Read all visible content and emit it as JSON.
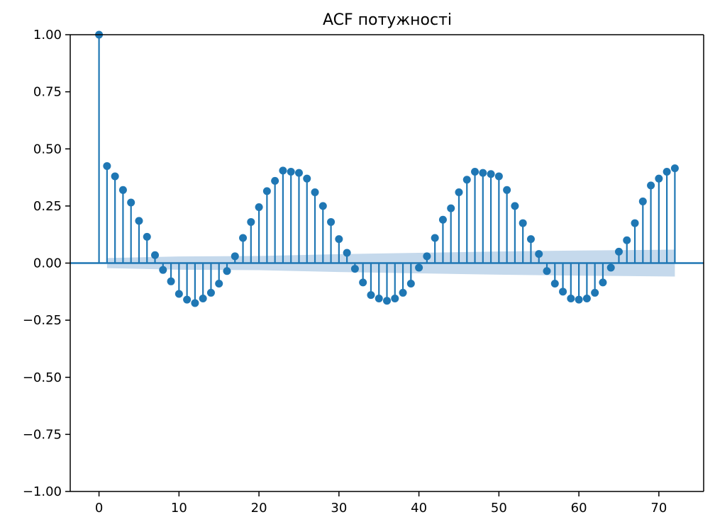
{
  "chart_data": {
    "type": "stem",
    "title": "ACF потужності",
    "xlabel": "",
    "ylabel": "",
    "xlim": [
      -3.6,
      75.6
    ],
    "ylim": [
      -1.0,
      1.0
    ],
    "x_ticks": [
      0,
      10,
      20,
      30,
      40,
      50,
      60,
      70
    ],
    "y_ticks": [
      -1.0,
      -0.75,
      -0.5,
      -0.25,
      0.0,
      0.25,
      0.5,
      0.75,
      1.0
    ],
    "y_tick_labels": [
      "−1.00",
      "−0.75",
      "−0.50",
      "−0.25",
      "0.00",
      "0.25",
      "0.50",
      "0.75",
      "1.00"
    ],
    "x_tick_labels": [
      "0",
      "10",
      "20",
      "30",
      "40",
      "50",
      "60",
      "70"
    ],
    "grid": false,
    "series": [
      {
        "lags": [
          0,
          1,
          2,
          3,
          4,
          5,
          6,
          7,
          8,
          9,
          10,
          11,
          12,
          13,
          14,
          15,
          16,
          17,
          18,
          19,
          20,
          21,
          22,
          23,
          24,
          25,
          26,
          27,
          28,
          29,
          30,
          31,
          32,
          33,
          34,
          35,
          36,
          37,
          38,
          39,
          40,
          41,
          42,
          43,
          44,
          45,
          46,
          47,
          48,
          49,
          50,
          51,
          52,
          53,
          54,
          55,
          56,
          57,
          58,
          59,
          60,
          61,
          62,
          63,
          64,
          65,
          66,
          67,
          68,
          69,
          70,
          71,
          72
        ],
        "values": [
          1.0,
          0.425,
          0.38,
          0.32,
          0.265,
          0.185,
          0.115,
          0.035,
          -0.03,
          -0.08,
          -0.135,
          -0.16,
          -0.175,
          -0.155,
          -0.13,
          -0.09,
          -0.035,
          0.03,
          0.11,
          0.18,
          0.245,
          0.315,
          0.36,
          0.405,
          0.4,
          0.395,
          0.37,
          0.31,
          0.25,
          0.18,
          0.105,
          0.045,
          -0.025,
          -0.085,
          -0.14,
          -0.155,
          -0.165,
          -0.155,
          -0.13,
          -0.09,
          -0.02,
          0.03,
          0.11,
          0.19,
          0.24,
          0.31,
          0.365,
          0.4,
          0.395,
          0.39,
          0.38,
          0.32,
          0.25,
          0.175,
          0.105,
          0.04,
          -0.035,
          -0.09,
          -0.125,
          -0.155,
          -0.16,
          -0.155,
          -0.13,
          -0.085,
          -0.02,
          0.05,
          0.1,
          0.175,
          0.27,
          0.34,
          0.37,
          0.4,
          0.415
        ]
      }
    ],
    "confidence_band": {
      "lags": [
        1,
        10,
        20,
        30,
        40,
        50,
        60,
        72
      ],
      "half_width": [
        0.022,
        0.029,
        0.031,
        0.039,
        0.045,
        0.051,
        0.055,
        0.059
      ]
    },
    "colors": {
      "stem": "#1f77b4",
      "band": "#c5d9ec",
      "axis": "#000000"
    }
  }
}
